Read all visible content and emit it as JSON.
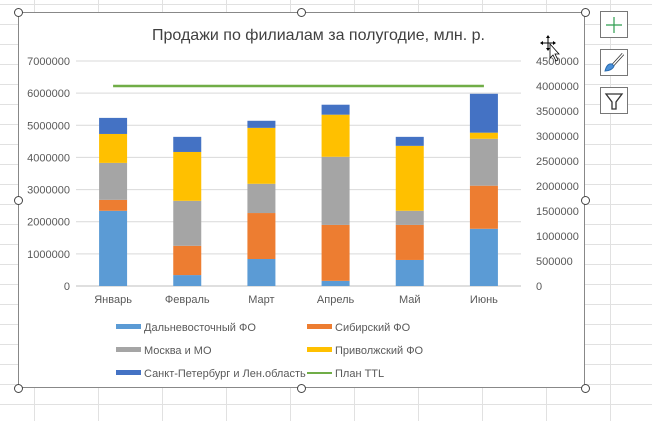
{
  "chart_data": {
    "type": "bar",
    "stacked": true,
    "title": "Продажи по филиалам за полугодие, млн. р.",
    "categories": [
      "Январь",
      "Февраль",
      "Март",
      "Апрель",
      "Май",
      "Июнь"
    ],
    "series": [
      {
        "name": "Дальневосточный ФО",
        "color": "#5b9bd5",
        "values": [
          2340000,
          340000,
          840000,
          160000,
          810000,
          1780000
        ]
      },
      {
        "name": "Сибирский ФО",
        "color": "#ed7d31",
        "values": [
          340000,
          910000,
          1430000,
          1740000,
          1090000,
          1340000
        ]
      },
      {
        "name": "Москва и МО",
        "color": "#a5a5a5",
        "values": [
          1150000,
          1400000,
          910000,
          2120000,
          440000,
          1460000
        ]
      },
      {
        "name": "Приволжский ФО",
        "color": "#ffc000",
        "values": [
          900000,
          1520000,
          1740000,
          1310000,
          2020000,
          190000
        ]
      },
      {
        "name": "Санкт-Петербург и Лен.область",
        "color": "#4472c4",
        "values": [
          500000,
          470000,
          220000,
          310000,
          280000,
          1210000
        ]
      }
    ],
    "line_series": {
      "name": "План TTL",
      "color": "#70ad47",
      "axis": "secondary",
      "values": [
        4000000,
        4000000,
        4000000,
        4000000,
        4000000,
        4000000
      ]
    },
    "y_primary": {
      "range": [
        0,
        7000000
      ],
      "ticks": [
        "0",
        "1000000",
        "2000000",
        "3000000",
        "4000000",
        "5000000",
        "6000000",
        "7000000"
      ]
    },
    "y_secondary": {
      "range": [
        0,
        4500000
      ],
      "ticks": [
        "0",
        "500000",
        "1000000",
        "1500000",
        "2000000",
        "2500000",
        "3000000",
        "3500000",
        "4000000",
        "4500000"
      ]
    },
    "grid": true,
    "legend_placement": "bottom"
  },
  "side_buttons": {
    "elements": "plus-icon",
    "styles": "brush-icon",
    "filters": "filter-icon"
  }
}
